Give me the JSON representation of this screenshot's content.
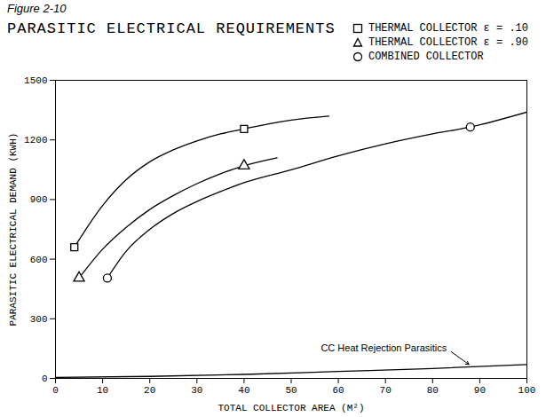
{
  "chart_data": {
    "type": "line",
    "figure_label": "Figure 2-10",
    "title": "PARASITIC ELECTRICAL REQUIREMENTS",
    "x_label": "TOTAL COLLECTOR AREA (M²)",
    "y_label": "PARASITIC ELECTRICAL DEMAND (KWH)",
    "xlim": [
      0,
      100
    ],
    "xticks": [
      0,
      10,
      20,
      30,
      40,
      50,
      60,
      70,
      80,
      90,
      100
    ],
    "ylim": [
      0,
      1500
    ],
    "yticks": [
      0,
      300,
      600,
      900,
      1200,
      1500
    ],
    "grid": false,
    "legend": "top-right",
    "series": [
      {
        "name": "THERMAL COLLECTOR ε = .10",
        "color": "#000000",
        "marker": "square",
        "marker_x": [
          4,
          40
        ],
        "x": [
          4,
          10,
          15,
          20,
          25,
          30,
          35,
          40,
          45,
          50,
          58
        ],
        "values": [
          660,
          870,
          1000,
          1090,
          1150,
          1195,
          1230,
          1255,
          1280,
          1300,
          1320
        ]
      },
      {
        "name": "THERMAL COLLECTOR ε = .90",
        "color": "#000000",
        "marker": "triangle",
        "marker_x": [
          5,
          40
        ],
        "x": [
          5,
          10,
          15,
          20,
          25,
          30,
          35,
          40,
          47
        ],
        "values": [
          505,
          650,
          760,
          850,
          920,
          980,
          1030,
          1070,
          1110
        ]
      },
      {
        "name": "COMBINED COLLECTOR",
        "color": "#000000",
        "marker": "circle",
        "marker_x": [
          11,
          88
        ],
        "x": [
          11,
          15,
          20,
          25,
          30,
          35,
          40,
          50,
          60,
          70,
          80,
          88,
          100
        ],
        "values": [
          505,
          640,
          750,
          830,
          890,
          940,
          985,
          1050,
          1120,
          1180,
          1230,
          1265,
          1340
        ]
      },
      {
        "name": "CC Heat Rejection Parasitics",
        "color": "#000000",
        "label_x": 83,
        "label_y": 150,
        "arrow_x": 88,
        "arrow_y": 65,
        "x": [
          0,
          20,
          40,
          60,
          80,
          100
        ],
        "values": [
          5,
          10,
          20,
          35,
          50,
          70
        ]
      }
    ]
  }
}
